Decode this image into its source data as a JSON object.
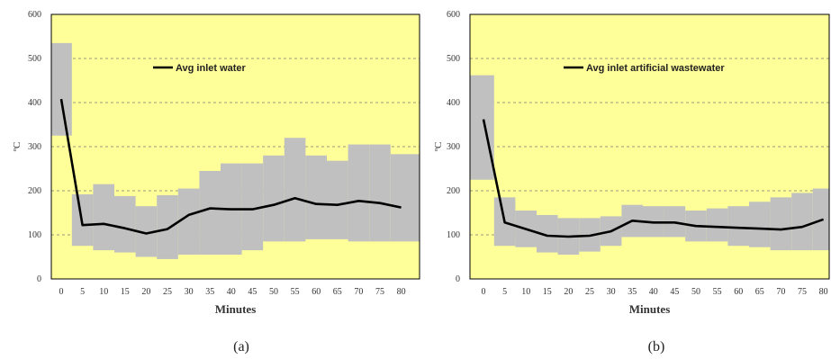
{
  "chart_data": [
    {
      "type": "area",
      "caption": "(a)",
      "xlabel": "Minutes",
      "ylabel": "ºC",
      "ylim": [
        0,
        600
      ],
      "yticks": [
        0,
        100,
        200,
        300,
        400,
        500,
        600
      ],
      "x": [
        0,
        5,
        10,
        15,
        20,
        25,
        30,
        35,
        40,
        45,
        50,
        55,
        60,
        65,
        70,
        75,
        80
      ],
      "grid": true,
      "background_color": "#ffff99",
      "band_color": "#c0c0c0",
      "line_color": "#000000",
      "legend_position": "top-left",
      "series": [
        {
          "name": "Avg inlet water",
          "values": [
            408,
            122,
            125,
            115,
            103,
            113,
            145,
            160,
            158,
            158,
            168,
            183,
            170,
            168,
            177,
            172,
            162
          ]
        },
        {
          "role": "max",
          "values": [
            535,
            192,
            215,
            188,
            165,
            190,
            205,
            245,
            262,
            262,
            280,
            320,
            280,
            268,
            305,
            305,
            283
          ]
        },
        {
          "role": "min",
          "values": [
            325,
            75,
            65,
            60,
            50,
            45,
            55,
            55,
            55,
            65,
            85,
            85,
            90,
            90,
            85,
            85,
            85
          ]
        }
      ]
    },
    {
      "type": "area",
      "caption": "(b)",
      "xlabel": "Minutes",
      "ylabel": "ºC",
      "ylim": [
        0,
        600
      ],
      "yticks": [
        0,
        100,
        200,
        300,
        400,
        500,
        600
      ],
      "x": [
        0,
        5,
        10,
        15,
        20,
        25,
        30,
        35,
        40,
        45,
        50,
        55,
        60,
        65,
        70,
        75,
        80
      ],
      "grid": true,
      "background_color": "#ffff99",
      "band_color": "#c0c0c0",
      "line_color": "#000000",
      "legend_position": "top-left",
      "series": [
        {
          "name": "Avg inlet artificial wastewater",
          "values": [
            362,
            128,
            113,
            98,
            96,
            98,
            108,
            132,
            128,
            128,
            120,
            118,
            116,
            114,
            112,
            118,
            135
          ]
        },
        {
          "role": "max",
          "values": [
            462,
            185,
            155,
            145,
            138,
            138,
            142,
            168,
            165,
            165,
            155,
            160,
            165,
            175,
            185,
            195,
            205
          ]
        },
        {
          "role": "min",
          "values": [
            225,
            75,
            72,
            60,
            55,
            62,
            75,
            95,
            95,
            95,
            85,
            85,
            75,
            72,
            65,
            65,
            65
          ]
        }
      ]
    }
  ]
}
